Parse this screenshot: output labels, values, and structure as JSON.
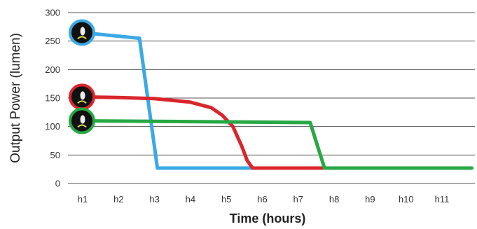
{
  "chart_data": {
    "type": "line",
    "title": "",
    "xlabel": "Time (hours)",
    "ylabel": "Output Power (lumen)",
    "ylim": [
      0,
      300
    ],
    "xlim": [
      0,
      11.85
    ],
    "y_ticks": [
      0,
      50,
      100,
      150,
      200,
      250,
      300
    ],
    "y_tick_labels": [
      "0",
      "50",
      "100",
      "150",
      "200",
      "250",
      "300"
    ],
    "x_ticks": [
      1,
      2,
      3,
      4,
      5,
      6,
      7,
      8,
      9,
      10,
      11
    ],
    "x_tick_labels": [
      "h1",
      "h2",
      "h3",
      "h4",
      "h5",
      "h6",
      "h7",
      "h8",
      "h9",
      "h10",
      "h11"
    ],
    "grid": true,
    "legend": "none",
    "series": [
      {
        "color": "#3aa9e6",
        "x": [
          1.0,
          2.6,
          3.1,
          5.8
        ],
        "y": [
          265,
          255,
          27,
          27
        ]
      },
      {
        "color": "#d9262c",
        "x": [
          1.0,
          2.0,
          3.0,
          4.0,
          4.6,
          4.9,
          5.2,
          5.45,
          5.6,
          5.75,
          7.7
        ],
        "y": [
          152,
          151,
          149,
          143,
          133,
          120,
          100,
          65,
          40,
          27,
          27
        ]
      },
      {
        "color": "#27a844",
        "x": [
          1.0,
          7.35,
          7.75,
          11.85
        ],
        "y": [
          110,
          107,
          27,
          27
        ]
      }
    ]
  }
}
